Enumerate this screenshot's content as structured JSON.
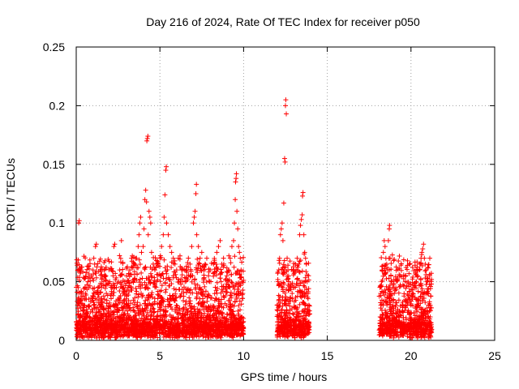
{
  "chart_data": {
    "type": "scatter",
    "title": "Day 216 of 2024, Rate Of TEC Index for receiver p050",
    "xlabel": "GPS time / hours",
    "ylabel": "ROTI / TECUs",
    "xlim": [
      0,
      25
    ],
    "ylim": [
      0,
      0.25
    ],
    "x_ticks": [
      0,
      5,
      10,
      15,
      20,
      25
    ],
    "y_ticks": [
      0,
      0.05,
      0.1,
      0.15,
      0.2,
      0.25
    ],
    "x_tick_labels": [
      "0",
      "5",
      "10",
      "15",
      "20",
      "25"
    ],
    "y_tick_labels": [
      "0",
      "0.05",
      "0.1",
      "0.15",
      "0.2",
      "0.25"
    ],
    "grid": true,
    "marker": "+",
    "color": "#ff0000",
    "series": [
      {
        "name": "ROTI",
        "points": [
          [
            0.05,
            0.01
          ],
          [
            0.08,
            0.03
          ],
          [
            0.1,
            0.06
          ],
          [
            0.12,
            0.045
          ],
          [
            0.15,
            0.1
          ],
          [
            0.18,
            0.102
          ],
          [
            0.2,
            0.02
          ],
          [
            0.25,
            0.015
          ],
          [
            0.3,
            0.008
          ],
          [
            0.35,
            0.012
          ],
          [
            0.4,
            0.025
          ],
          [
            0.5,
            0.03
          ],
          [
            0.55,
            0.04
          ],
          [
            0.6,
            0.035
          ],
          [
            0.7,
            0.05
          ],
          [
            0.75,
            0.045
          ],
          [
            0.8,
            0.02
          ],
          [
            0.9,
            0.055
          ],
          [
            1.0,
            0.06
          ],
          [
            1.05,
            0.07
          ],
          [
            1.1,
            0.065
          ],
          [
            1.15,
            0.08
          ],
          [
            1.2,
            0.082
          ],
          [
            1.3,
            0.04
          ],
          [
            1.4,
            0.03
          ],
          [
            1.5,
            0.045
          ],
          [
            1.6,
            0.02
          ],
          [
            1.7,
            0.035
          ],
          [
            1.8,
            0.04
          ],
          [
            1.9,
            0.025
          ],
          [
            2.0,
            0.05
          ],
          [
            2.1,
            0.06
          ],
          [
            2.2,
            0.055
          ],
          [
            2.25,
            0.08
          ],
          [
            2.3,
            0.082
          ],
          [
            2.4,
            0.045
          ],
          [
            2.5,
            0.035
          ],
          [
            2.6,
            0.06
          ],
          [
            2.7,
            0.085
          ],
          [
            2.8,
            0.04
          ],
          [
            2.9,
            0.05
          ],
          [
            3.0,
            0.055
          ],
          [
            3.1,
            0.045
          ],
          [
            3.2,
            0.06
          ],
          [
            3.3,
            0.07
          ],
          [
            3.35,
            0.072
          ],
          [
            3.4,
            0.05
          ],
          [
            3.5,
            0.065
          ],
          [
            3.6,
            0.07
          ],
          [
            3.7,
            0.08
          ],
          [
            3.75,
            0.09
          ],
          [
            3.8,
            0.1
          ],
          [
            3.85,
            0.105
          ],
          [
            3.9,
            0.075
          ],
          [
            4.0,
            0.08
          ],
          [
            4.05,
            0.095
          ],
          [
            4.1,
            0.12
          ],
          [
            4.15,
            0.128
          ],
          [
            4.2,
            0.118
          ],
          [
            4.22,
            0.17
          ],
          [
            4.25,
            0.172
          ],
          [
            4.28,
            0.174
          ],
          [
            4.3,
            0.09
          ],
          [
            4.35,
            0.11
          ],
          [
            4.4,
            0.105
          ],
          [
            4.45,
            0.1
          ],
          [
            4.5,
            0.075
          ],
          [
            4.6,
            0.065
          ],
          [
            4.7,
            0.06
          ],
          [
            4.8,
            0.05
          ],
          [
            5.0,
            0.07
          ],
          [
            5.1,
            0.08
          ],
          [
            5.2,
            0.09
          ],
          [
            5.25,
            0.105
          ],
          [
            5.3,
            0.124
          ],
          [
            5.35,
            0.145
          ],
          [
            5.38,
            0.148
          ],
          [
            5.4,
            0.1
          ],
          [
            5.5,
            0.09
          ],
          [
            5.6,
            0.08
          ],
          [
            5.7,
            0.075
          ],
          [
            5.8,
            0.07
          ],
          [
            5.9,
            0.065
          ],
          [
            6.0,
            0.06
          ],
          [
            6.1,
            0.07
          ],
          [
            6.2,
            0.072
          ],
          [
            6.3,
            0.06
          ],
          [
            6.5,
            0.05
          ],
          [
            6.6,
            0.06
          ],
          [
            6.7,
            0.07
          ],
          [
            6.8,
            0.065
          ],
          [
            6.9,
            0.08
          ],
          [
            7.0,
            0.1
          ],
          [
            7.05,
            0.105
          ],
          [
            7.1,
            0.11
          ],
          [
            7.15,
            0.125
          ],
          [
            7.18,
            0.133
          ],
          [
            7.2,
            0.09
          ],
          [
            7.3,
            0.08
          ],
          [
            7.4,
            0.07
          ],
          [
            7.5,
            0.075
          ],
          [
            7.6,
            0.06
          ],
          [
            7.7,
            0.065
          ],
          [
            7.8,
            0.07
          ],
          [
            7.9,
            0.055
          ],
          [
            8.0,
            0.06
          ],
          [
            8.2,
            0.065
          ],
          [
            8.4,
            0.075
          ],
          [
            8.5,
            0.08
          ],
          [
            8.6,
            0.085
          ],
          [
            8.7,
            0.065
          ],
          [
            8.8,
            0.07
          ],
          [
            9.0,
            0.055
          ],
          [
            9.1,
            0.06
          ],
          [
            9.2,
            0.07
          ],
          [
            9.3,
            0.08
          ],
          [
            9.4,
            0.085
          ],
          [
            9.45,
            0.1
          ],
          [
            9.5,
            0.12
          ],
          [
            9.52,
            0.135
          ],
          [
            9.55,
            0.138
          ],
          [
            9.57,
            0.142
          ],
          [
            9.6,
            0.11
          ],
          [
            9.65,
            0.095
          ],
          [
            9.7,
            0.08
          ],
          [
            9.75,
            0.075
          ],
          [
            9.8,
            0.07
          ],
          [
            9.85,
            0.06
          ],
          [
            9.9,
            0.05
          ],
          [
            9.95,
            0.04
          ],
          [
            12.0,
            0.03
          ],
          [
            12.05,
            0.05
          ],
          [
            12.1,
            0.06
          ],
          [
            12.15,
            0.07
          ],
          [
            12.2,
            0.09
          ],
          [
            12.25,
            0.095
          ],
          [
            12.3,
            0.1
          ],
          [
            12.35,
            0.085
          ],
          [
            12.4,
            0.117
          ],
          [
            12.45,
            0.155
          ],
          [
            12.48,
            0.152
          ],
          [
            12.5,
            0.2
          ],
          [
            12.52,
            0.205
          ],
          [
            12.55,
            0.193
          ],
          [
            12.6,
            0.07
          ],
          [
            12.65,
            0.06
          ],
          [
            12.7,
            0.05
          ],
          [
            12.8,
            0.045
          ],
          [
            12.9,
            0.04
          ],
          [
            13.0,
            0.06
          ],
          [
            13.1,
            0.065
          ],
          [
            13.2,
            0.07
          ],
          [
            13.3,
            0.065
          ],
          [
            13.35,
            0.09
          ],
          [
            13.4,
            0.098
          ],
          [
            13.45,
            0.103
          ],
          [
            13.5,
            0.107
          ],
          [
            13.52,
            0.123
          ],
          [
            13.55,
            0.126
          ],
          [
            13.6,
            0.09
          ],
          [
            13.65,
            0.075
          ],
          [
            13.7,
            0.07
          ],
          [
            13.75,
            0.065
          ],
          [
            13.8,
            0.05
          ],
          [
            13.85,
            0.04
          ],
          [
            13.9,
            0.03
          ],
          [
            18.2,
            0.03
          ],
          [
            18.25,
            0.05
          ],
          [
            18.3,
            0.06
          ],
          [
            18.35,
            0.075
          ],
          [
            18.4,
            0.085
          ],
          [
            18.45,
            0.08
          ],
          [
            18.5,
            0.07
          ],
          [
            18.55,
            0.065
          ],
          [
            18.6,
            0.06
          ],
          [
            18.65,
            0.085
          ],
          [
            18.7,
            0.095
          ],
          [
            18.72,
            0.098
          ],
          [
            18.75,
            0.07
          ],
          [
            18.8,
            0.055
          ],
          [
            18.85,
            0.05
          ],
          [
            18.9,
            0.045
          ],
          [
            19.0,
            0.04
          ],
          [
            19.1,
            0.03
          ],
          [
            19.2,
            0.025
          ],
          [
            19.3,
            0.02
          ],
          [
            19.5,
            0.025
          ],
          [
            19.7,
            0.03
          ],
          [
            19.9,
            0.035
          ],
          [
            20.0,
            0.03
          ],
          [
            20.1,
            0.04
          ],
          [
            20.2,
            0.045
          ],
          [
            20.3,
            0.05
          ],
          [
            20.4,
            0.055
          ],
          [
            20.5,
            0.06
          ],
          [
            20.55,
            0.065
          ],
          [
            20.6,
            0.07
          ],
          [
            20.65,
            0.075
          ],
          [
            20.7,
            0.078
          ],
          [
            20.75,
            0.082
          ],
          [
            20.8,
            0.07
          ],
          [
            20.85,
            0.065
          ],
          [
            20.9,
            0.06
          ],
          [
            20.95,
            0.05
          ],
          [
            21.0,
            0.04
          ],
          [
            21.05,
            0.03
          ],
          [
            21.1,
            0.025
          ],
          [
            21.15,
            0.02
          ],
          [
            21.2,
            0.015
          ]
        ]
      }
    ]
  }
}
